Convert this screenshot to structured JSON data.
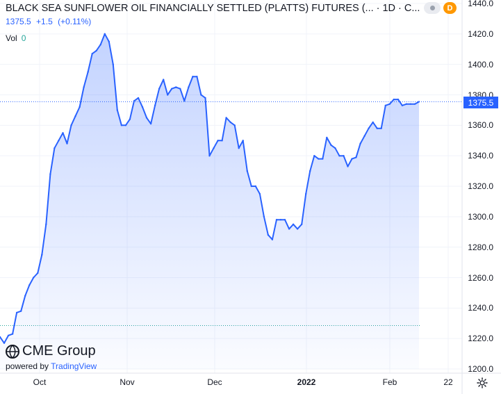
{
  "header": {
    "title": "BLACK SEA SUNFLOWER OIL FINANCIALLY SETTLED (PLATTS) FUTURES (...",
    "interval": "1D",
    "exchange": "C...",
    "badge_letter": "D",
    "badge_color": "#ff9800"
  },
  "quote": {
    "last": "1375.5",
    "change": "+1.5",
    "change_pct": "(+0.11%)"
  },
  "volume": {
    "label": "Vol",
    "value": "0"
  },
  "price_badge": {
    "value": "1375.5",
    "color": "#2962ff"
  },
  "branding": {
    "logo_text": "CME Group",
    "powered_prefix": "powered by",
    "powered_brand": "TradingView"
  },
  "icons": {
    "settings": "gear-icon",
    "logo": "cme-globe-icon",
    "visibility": "dot-icon"
  },
  "chart_data": {
    "type": "area",
    "line_color": "#2962ff",
    "fill_color": "#2962ff",
    "ylim": [
      1200,
      1440
    ],
    "y_ticks": [
      "1440.0",
      "1420.0",
      "1400.0",
      "1380.0",
      "1360.0",
      "1340.0",
      "1320.0",
      "1300.0",
      "1280.0",
      "1260.0",
      "1240.0",
      "1220.0",
      "1200.0"
    ],
    "x_ticks": [
      {
        "label": "Oct",
        "bold": false
      },
      {
        "label": "Nov",
        "bold": false
      },
      {
        "label": "Dec",
        "bold": false
      },
      {
        "label": "2022",
        "bold": true
      },
      {
        "label": "Feb",
        "bold": false
      },
      {
        "label": "22",
        "bold": false
      }
    ],
    "reference_lines": [
      {
        "value": 1375.5,
        "color": "#2962ff",
        "style": "dotted"
      },
      {
        "value": 1228.5,
        "color": "#26a69a",
        "style": "dotted"
      }
    ],
    "x_range": [
      0,
      101
    ],
    "series": [
      {
        "x": [
          0,
          1,
          2,
          3,
          4,
          5,
          6,
          7,
          8,
          9,
          10,
          11,
          12,
          13,
          14,
          15,
          16,
          17,
          18,
          19,
          20,
          21,
          22,
          23,
          24,
          25,
          26,
          27,
          28,
          29,
          30,
          31,
          32,
          33,
          34,
          35,
          36,
          37,
          38,
          39,
          40,
          41,
          42,
          43,
          44,
          45,
          46,
          47,
          48,
          49,
          50,
          51,
          52,
          53,
          54,
          55,
          56,
          57,
          58,
          59,
          60,
          61,
          62,
          63,
          64,
          65,
          66,
          67,
          68,
          69,
          70,
          71,
          72,
          73,
          74,
          75,
          76,
          77,
          78,
          79,
          80,
          81,
          82,
          83,
          84,
          85,
          86,
          87,
          88,
          89,
          90,
          91,
          92,
          93,
          94,
          95,
          96,
          97,
          98,
          99,
          100
        ],
        "y": [
          1221,
          1217,
          1222,
          1223,
          1237,
          1238,
          1248,
          1255,
          1260,
          1263,
          1275,
          1295,
          1328,
          1345,
          1350,
          1355,
          1348,
          1360,
          1366,
          1372,
          1385,
          1395,
          1407,
          1409,
          1413,
          1420,
          1415,
          1400,
          1370,
          1360,
          1360,
          1364,
          1376,
          1378,
          1372,
          1365,
          1361,
          1373,
          1384,
          1390,
          1380,
          1384,
          1385,
          1384,
          1376,
          1385,
          1392,
          1392,
          1380,
          1378,
          1340,
          1345,
          1350,
          1350,
          1365,
          1362,
          1360,
          1345,
          1350,
          1330,
          1320,
          1320,
          1315,
          1300,
          1288,
          1285,
          1298,
          1298,
          1298,
          1292,
          1295,
          1292,
          1295,
          1315,
          1330,
          1340,
          1338,
          1338,
          1352,
          1347,
          1345,
          1340,
          1340,
          1333,
          1338,
          1339,
          1348,
          1353,
          1358,
          1362,
          1358,
          1358,
          1373,
          1374,
          1377,
          1377,
          1373,
          1374,
          1374,
          1374,
          1375.5
        ]
      }
    ]
  }
}
